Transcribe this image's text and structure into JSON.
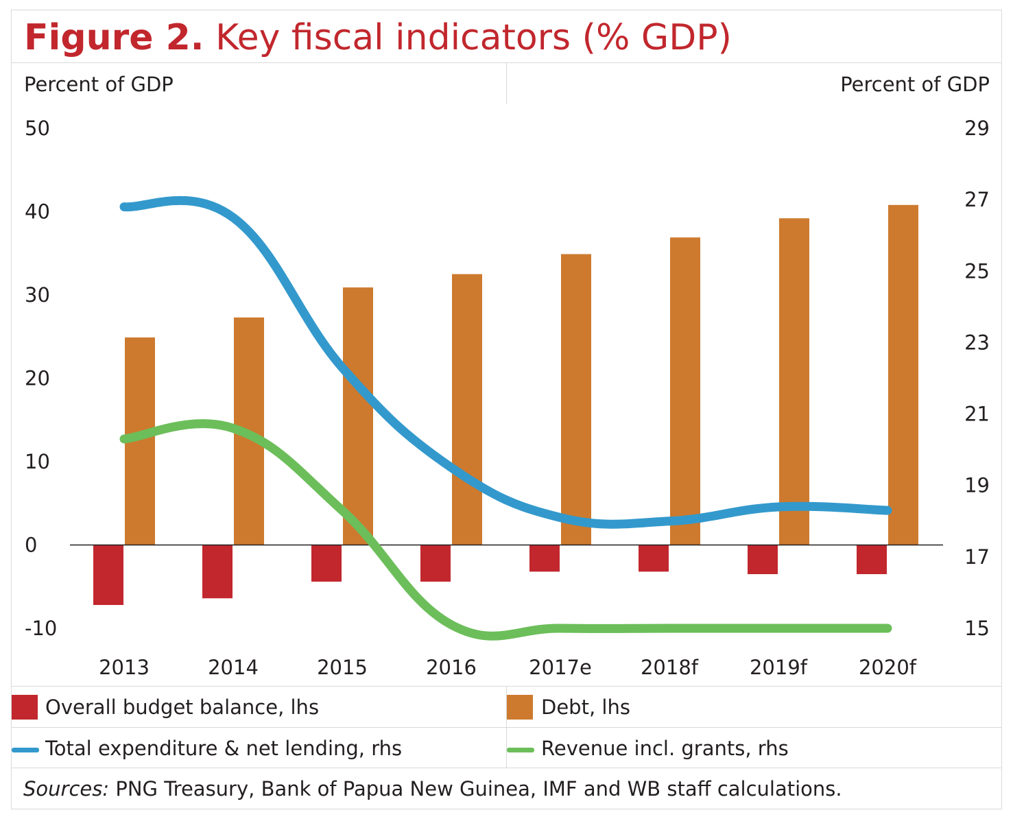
{
  "title": {
    "figure_number": "Figure 2.",
    "text": "Key fiscal indicators (% GDP)"
  },
  "colors": {
    "title": "#c1272d",
    "balance_bar": "#c1272d",
    "debt_bar": "#cd7a2e",
    "expenditure_line": "#3399cc",
    "revenue_line": "#6cbe5a",
    "grid_border": "#d9d9d9"
  },
  "legend": {
    "balance": "Overall budget balance, lhs",
    "debt": "Debt, lhs",
    "expenditure": "Total expenditure & net lending, rhs",
    "revenue": "Revenue incl. grants, rhs"
  },
  "sources": {
    "label": "Sources:",
    "text": " PNG Treasury, Bank of Papua New Guinea, IMF and WB staff calculations."
  },
  "chart_data": {
    "type": "bar",
    "categories": [
      "2013",
      "2014",
      "2015",
      "2016",
      "2017e",
      "2018f",
      "2019f",
      "2020f"
    ],
    "left_axis": {
      "label": "Percent of GDP",
      "range": [
        -10,
        50
      ],
      "ticks": [
        "50",
        "40",
        "30",
        "20",
        "10",
        "0",
        "-10"
      ]
    },
    "right_axis": {
      "label": "Percent of GDP",
      "range": [
        15,
        29
      ],
      "ticks": [
        "29",
        "27",
        "25",
        "23",
        "21",
        "19",
        "17",
        "15"
      ]
    },
    "grid": false,
    "series": [
      {
        "name": "Overall budget balance, lhs",
        "type": "bar",
        "axis": "left",
        "values": [
          -7.2,
          -6.4,
          -4.4,
          -4.4,
          -3.2,
          -3.2,
          -3.5,
          -3.5
        ]
      },
      {
        "name": "Debt, lhs",
        "type": "bar",
        "axis": "left",
        "values": [
          24.9,
          27.3,
          30.9,
          32.5,
          34.9,
          36.9,
          39.2,
          40.8
        ]
      },
      {
        "name": "Total expenditure & net lending, rhs",
        "type": "line",
        "axis": "right",
        "values": [
          26.8,
          26.5,
          22.3,
          19.5,
          18.1,
          18.0,
          18.4,
          18.3
        ]
      },
      {
        "name": "Revenue incl. grants, rhs",
        "type": "line",
        "axis": "right",
        "values": [
          20.3,
          20.6,
          18.3,
          15.1,
          15.0,
          15.0,
          15.0,
          15.0
        ]
      }
    ]
  }
}
